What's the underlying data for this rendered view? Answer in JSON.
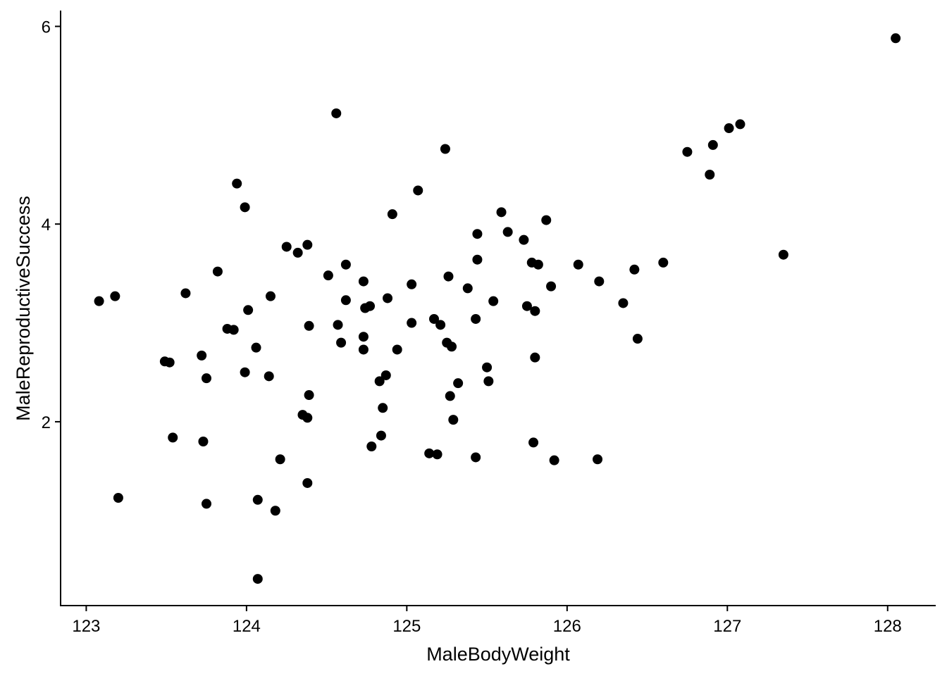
{
  "chart_data": {
    "type": "scatter",
    "title": "",
    "xlabel": "MaleBodyWeight",
    "ylabel": "MaleReproductiveSuccess",
    "xlim": [
      122.84,
      128.3
    ],
    "ylim": [
      0.14,
      6.16
    ],
    "xticks": [
      123,
      124,
      125,
      126,
      127,
      128
    ],
    "xtick_labels": [
      "123",
      "124",
      "125",
      "126",
      "127",
      "128"
    ],
    "yticks": [
      2,
      4,
      6
    ],
    "ytick_labels": [
      "2",
      "4",
      "6"
    ],
    "grid": false,
    "legend": "none",
    "point_color": "#000000",
    "points": [
      [
        128.05,
        5.88
      ],
      [
        124.56,
        5.12
      ],
      [
        125.24,
        4.76
      ],
      [
        127.08,
        5.01
      ],
      [
        127.01,
        4.97
      ],
      [
        126.91,
        4.8
      ],
      [
        126.75,
        4.73
      ],
      [
        126.89,
        4.5
      ],
      [
        123.94,
        4.41
      ],
      [
        123.99,
        4.17
      ],
      [
        125.07,
        4.34
      ],
      [
        124.91,
        4.1
      ],
      [
        125.59,
        4.12
      ],
      [
        125.87,
        4.04
      ],
      [
        125.44,
        3.9
      ],
      [
        125.63,
        3.92
      ],
      [
        125.73,
        3.84
      ],
      [
        127.35,
        3.69
      ],
      [
        124.25,
        3.77
      ],
      [
        124.32,
        3.71
      ],
      [
        124.38,
        3.79
      ],
      [
        123.82,
        3.52
      ],
      [
        124.51,
        3.48
      ],
      [
        124.62,
        3.59
      ],
      [
        124.73,
        3.42
      ],
      [
        125.44,
        3.64
      ],
      [
        125.78,
        3.61
      ],
      [
        125.82,
        3.59
      ],
      [
        126.07,
        3.59
      ],
      [
        126.6,
        3.61
      ],
      [
        126.42,
        3.54
      ],
      [
        123.08,
        3.22
      ],
      [
        123.18,
        3.27
      ],
      [
        123.62,
        3.3
      ],
      [
        124.15,
        3.27
      ],
      [
        124.01,
        3.13
      ],
      [
        124.62,
        3.23
      ],
      [
        124.74,
        3.15
      ],
      [
        124.77,
        3.17
      ],
      [
        124.88,
        3.25
      ],
      [
        125.03,
        3.39
      ],
      [
        125.26,
        3.47
      ],
      [
        125.38,
        3.35
      ],
      [
        125.54,
        3.22
      ],
      [
        125.9,
        3.37
      ],
      [
        126.2,
        3.42
      ],
      [
        126.35,
        3.2
      ],
      [
        125.75,
        3.17
      ],
      [
        125.8,
        3.12
      ],
      [
        123.88,
        2.94
      ],
      [
        123.92,
        2.93
      ],
      [
        124.39,
        2.97
      ],
      [
        124.57,
        2.98
      ],
      [
        124.73,
        2.86
      ],
      [
        125.03,
        3.0
      ],
      [
        125.17,
        3.04
      ],
      [
        125.21,
        2.98
      ],
      [
        125.43,
        3.04
      ],
      [
        124.59,
        2.8
      ],
      [
        124.73,
        2.73
      ],
      [
        124.06,
        2.75
      ],
      [
        124.94,
        2.73
      ],
      [
        125.25,
        2.8
      ],
      [
        125.28,
        2.76
      ],
      [
        126.44,
        2.84
      ],
      [
        125.8,
        2.65
      ],
      [
        123.49,
        2.61
      ],
      [
        123.52,
        2.6
      ],
      [
        123.72,
        2.67
      ],
      [
        123.75,
        2.44
      ],
      [
        123.99,
        2.5
      ],
      [
        124.14,
        2.46
      ],
      [
        124.39,
        2.27
      ],
      [
        124.87,
        2.47
      ],
      [
        124.83,
        2.41
      ],
      [
        125.5,
        2.55
      ],
      [
        125.51,
        2.41
      ],
      [
        125.32,
        2.39
      ],
      [
        125.27,
        2.26
      ],
      [
        124.35,
        2.07
      ],
      [
        124.38,
        2.04
      ],
      [
        124.85,
        2.14
      ],
      [
        125.29,
        2.02
      ],
      [
        123.54,
        1.84
      ],
      [
        123.73,
        1.8
      ],
      [
        124.84,
        1.86
      ],
      [
        124.78,
        1.75
      ],
      [
        125.14,
        1.68
      ],
      [
        125.19,
        1.67
      ],
      [
        125.43,
        1.64
      ],
      [
        125.79,
        1.79
      ],
      [
        125.92,
        1.61
      ],
      [
        126.19,
        1.62
      ],
      [
        124.21,
        1.62
      ],
      [
        123.2,
        1.23
      ],
      [
        123.75,
        1.17
      ],
      [
        124.07,
        1.21
      ],
      [
        124.18,
        1.1
      ],
      [
        124.38,
        1.38
      ],
      [
        124.07,
        0.41
      ]
    ]
  }
}
